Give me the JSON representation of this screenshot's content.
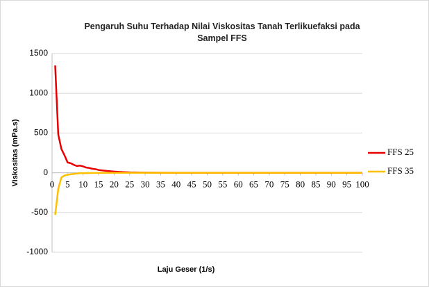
{
  "chart_data": {
    "type": "line",
    "title": "Pengaruh Suhu Terhadap Nilai Viskositas Tanah Terlikuefaksi pada Sampel FFS",
    "x_label": "Laju Geser (1/s)",
    "y_label": "Viskositas (mPa.s)",
    "x": [
      1,
      2,
      3,
      4,
      5,
      6,
      7,
      8,
      9,
      10,
      11,
      12,
      13,
      14,
      15,
      16,
      18,
      20,
      22,
      25,
      30,
      35,
      40,
      50,
      60,
      70,
      80,
      90,
      100
    ],
    "series": [
      {
        "name": "FFS 25",
        "color": "#e80000",
        "values": [
          1350,
          480,
          300,
          220,
          130,
          120,
          100,
          85,
          90,
          80,
          65,
          60,
          50,
          45,
          35,
          30,
          22,
          15,
          10,
          5,
          2,
          1,
          0,
          0,
          0,
          0,
          0,
          0,
          0
        ]
      },
      {
        "name": "FFS 35",
        "color": "#ffc000",
        "values": [
          -530,
          -200,
          -60,
          -35,
          -25,
          -20,
          -15,
          -10,
          -5,
          -5,
          -5,
          -3,
          -2,
          -2,
          -1,
          -1,
          0,
          0,
          0,
          0,
          0,
          0,
          0,
          0,
          0,
          0,
          0,
          0,
          0
        ]
      }
    ],
    "xlim": [
      0,
      100
    ],
    "xticks": [
      0,
      5,
      10,
      15,
      20,
      25,
      30,
      35,
      40,
      45,
      50,
      55,
      60,
      65,
      70,
      75,
      80,
      85,
      90,
      95,
      100
    ],
    "ylim": [
      -1000,
      1500
    ],
    "yticks": [
      -1000,
      -500,
      0,
      500,
      1000,
      1500
    ],
    "grid": true,
    "legend": "right"
  }
}
